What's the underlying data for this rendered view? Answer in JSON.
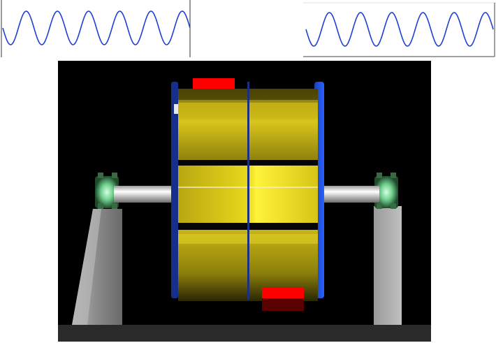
{
  "colors": {
    "wave_stroke": "#1f3fd6",
    "scene_background": "#000000",
    "rotor_yellow": "#e6d21a",
    "balance_weight_red": "#ff0000",
    "shaft": "#d8d8d8",
    "pedestal": "#8f8f8f",
    "bearing_glow": "#7fe0a0",
    "end_plate_blue": "#1540d8"
  },
  "waves": {
    "left": {
      "cycles": 6,
      "amplitude": 0.6
    },
    "right": {
      "cycles": 6,
      "amplitude": 0.6
    }
  },
  "scene": {
    "icon": "rotor-balancing-icon",
    "balance_weights": {
      "count": 2
    }
  }
}
